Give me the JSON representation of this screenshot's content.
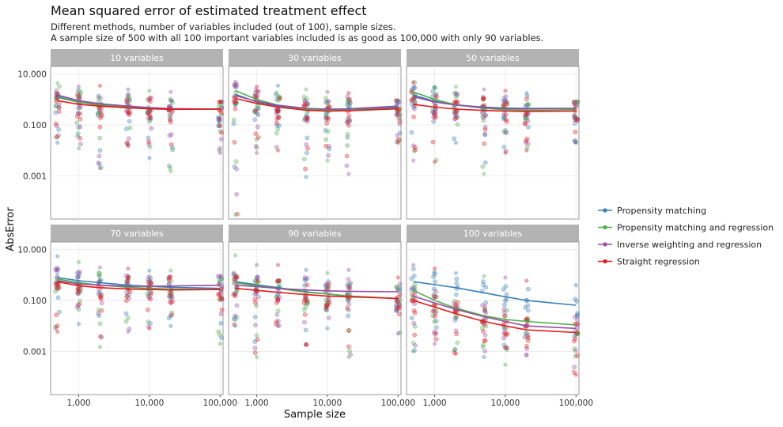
{
  "title": "Mean squared error of estimated treatment effect",
  "subtitle_line1": "Different methods, number of variables included (out of 100), sample sizes.",
  "subtitle_line2": "A sample size of 500 with all 100 important variables included is as good as 100,000 with only 90 variables.",
  "chart_data": {
    "type": "scatter",
    "facet_by": "variables",
    "xlabel": "Sample size",
    "ylabel": "AbsError",
    "x_scale": "log10",
    "y_scale": "log10",
    "xlim": [
      400,
      110000
    ],
    "ylim": [
      2e-05,
      20
    ],
    "x_ticks": [
      1000,
      10000,
      100000
    ],
    "x_tick_labels": [
      "1,000",
      "10,000",
      "100,000"
    ],
    "y_ticks": [
      10,
      0.1,
      0.001
    ],
    "y_tick_labels": [
      "10.000",
      "0.100",
      "0.001"
    ],
    "sample_sizes": [
      500,
      1000,
      2000,
      5000,
      10000,
      20000,
      100000
    ],
    "grid": true,
    "legend_position": "right",
    "series": [
      {
        "name": "Propensity matching",
        "color": "#377EB8"
      },
      {
        "name": "Propensity matching and regression",
        "color": "#4DAF4A"
      },
      {
        "name": "Inverse weighting and regression",
        "color": "#984EA3"
      },
      {
        "name": "Straight regression",
        "color": "#E41A1C"
      }
    ],
    "panels": [
      {
        "label": "10 variables",
        "trend": {
          "Propensity matching": [
            1.3,
            0.8,
            0.62,
            0.5,
            0.45,
            0.42,
            0.42
          ],
          "Propensity matching and regression": [
            1.2,
            0.78,
            0.6,
            0.5,
            0.45,
            0.42,
            0.42
          ],
          "Inverse weighting and regression": [
            1.5,
            0.9,
            0.68,
            0.55,
            0.48,
            0.44,
            0.42
          ],
          "Straight regression": [
            0.9,
            0.65,
            0.55,
            0.47,
            0.43,
            0.41,
            0.42
          ]
        },
        "points_min": [
          0.02,
          0.012,
          0.002,
          0.015,
          0.005,
          0.0015,
          0.008
        ],
        "points_max": [
          4.5,
          3.2,
          3.5,
          2.5,
          2.2,
          2.0,
          0.8
        ]
      },
      {
        "label": "30 variables",
        "trend": {
          "Propensity matching": [
            1.6,
            0.8,
            0.55,
            0.42,
            0.4,
            0.4,
            0.5
          ],
          "Propensity matching and regression": [
            2.2,
            1.0,
            0.6,
            0.42,
            0.38,
            0.38,
            0.45
          ],
          "Inverse weighting and regression": [
            1.4,
            0.85,
            0.6,
            0.45,
            0.42,
            0.43,
            0.55
          ],
          "Straight regression": [
            1.1,
            0.7,
            0.5,
            0.38,
            0.35,
            0.36,
            0.43
          ]
        },
        "points_min": [
          3e-05,
          0.008,
          0.01,
          0.0009,
          0.004,
          0.0012,
          0.02
        ],
        "points_max": [
          5.0,
          3.2,
          3.5,
          2.5,
          2.0,
          1.8,
          0.9
        ]
      },
      {
        "label": "50 variables",
        "trend": {
          "Propensity matching": [
            1.5,
            0.85,
            0.62,
            0.5,
            0.46,
            0.45,
            0.45
          ],
          "Propensity matching and regression": [
            2.0,
            1.0,
            0.62,
            0.45,
            0.4,
            0.38,
            0.4
          ],
          "Inverse weighting and regression": [
            1.3,
            0.8,
            0.6,
            0.48,
            0.44,
            0.43,
            0.45
          ],
          "Straight regression": [
            0.65,
            0.5,
            0.42,
            0.37,
            0.35,
            0.34,
            0.35
          ]
        },
        "points_min": [
          0.004,
          0.0035,
          0.02,
          0.0012,
          0.008,
          0.01,
          0.02
        ],
        "points_max": [
          4.8,
          3.0,
          3.2,
          2.5,
          2.2,
          1.8,
          0.8
        ]
      },
      {
        "label": "70 variables",
        "trend": {
          "Propensity matching": [
            0.8,
            0.6,
            0.5,
            0.4,
            0.36,
            0.33,
            0.3
          ],
          "Propensity matching and regression": [
            0.7,
            0.5,
            0.4,
            0.33,
            0.3,
            0.28,
            0.27
          ],
          "Inverse weighting and regression": [
            0.6,
            0.45,
            0.4,
            0.36,
            0.36,
            0.37,
            0.4
          ],
          "Straight regression": [
            0.55,
            0.38,
            0.32,
            0.28,
            0.27,
            0.26,
            0.27
          ]
        },
        "points_min": [
          0.006,
          0.012,
          0.0015,
          0.006,
          0.008,
          0.01,
          0.002
        ],
        "points_max": [
          5.5,
          3.2,
          2.0,
          1.8,
          1.5,
          1.5,
          0.9
        ]
      },
      {
        "label": "90 variables",
        "trend": {
          "Propensity matching": [
            0.55,
            0.42,
            0.32,
            0.22,
            0.18,
            0.15,
            0.12
          ],
          "Propensity matching and regression": [
            0.5,
            0.38,
            0.3,
            0.21,
            0.18,
            0.15,
            0.12
          ],
          "Inverse weighting and regression": [
            0.4,
            0.35,
            0.3,
            0.26,
            0.24,
            0.23,
            0.22
          ],
          "Straight regression": [
            0.3,
            0.25,
            0.21,
            0.17,
            0.15,
            0.14,
            0.12
          ]
        },
        "points_min": [
          0.01,
          0.0006,
          0.01,
          0.0018,
          0.008,
          0.0006,
          0.005
        ],
        "points_max": [
          6.0,
          2.5,
          2.5,
          1.6,
          1.2,
          1.6,
          0.8
        ]
      },
      {
        "label": "100 variables",
        "trend": {
          "Propensity matching": [
            0.55,
            0.42,
            0.32,
            0.2,
            0.14,
            0.1,
            0.065
          ],
          "Propensity matching and regression": [
            0.25,
            0.1,
            0.05,
            0.025,
            0.018,
            0.015,
            0.011
          ],
          "Inverse weighting and regression": [
            0.15,
            0.08,
            0.045,
            0.023,
            0.015,
            0.01,
            0.008
          ],
          "Straight regression": [
            0.1,
            0.055,
            0.03,
            0.015,
            0.01,
            0.007,
            0.0055
          ]
        },
        "points_min": [
          0.001,
          0.002,
          0.0008,
          0.0006,
          0.0003,
          0.0007,
          0.00012
        ],
        "points_max": [
          2.5,
          1.8,
          1.2,
          0.9,
          0.8,
          0.6,
          0.4
        ]
      }
    ]
  }
}
